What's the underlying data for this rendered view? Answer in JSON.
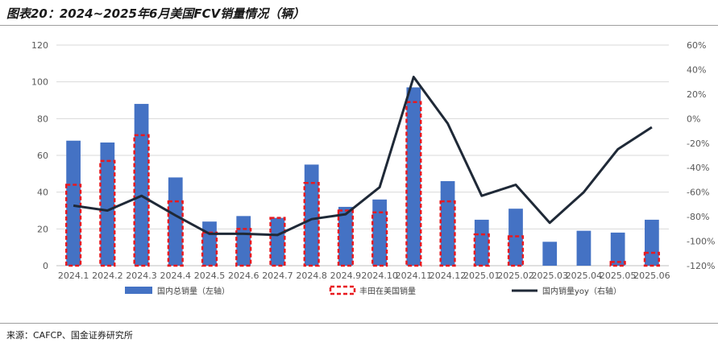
{
  "title": "图表20：2024~2025年6月美国FCV销量情况（辆）",
  "source": "来源：CAFCP、国金证券研究所",
  "colors": {
    "total_bar": "#4472C4",
    "toyota_dash": "#E8191F",
    "yoy_line": "#1F2937",
    "grid": "#D9D9D9",
    "axis_text": "#595959"
  },
  "chart_data": {
    "type": "bar",
    "categories": [
      "2024.1",
      "2024.2",
      "2024.3",
      "2024.4",
      "2024.5",
      "2024.6",
      "2024.7",
      "2024.8",
      "2024.9",
      "2024.10",
      "2024.11",
      "2024.12",
      "2025.01",
      "2025.02",
      "2025.03",
      "2025.04",
      "2025.05",
      "2025.06"
    ],
    "series": [
      {
        "name": "国内总销量（左轴）",
        "kind": "bar",
        "axis": "left",
        "values": [
          68,
          67,
          88,
          48,
          24,
          27,
          26,
          55,
          32,
          36,
          97,
          46,
          25,
          31,
          13,
          19,
          18,
          25
        ]
      },
      {
        "name": "丰田在美国销量",
        "kind": "dashed-bar",
        "axis": "left",
        "values": [
          44,
          57,
          71,
          35,
          18,
          20,
          26,
          45,
          30,
          29,
          89,
          35,
          17,
          16,
          0,
          0,
          2,
          7
        ]
      },
      {
        "name": "国内销量yoy（右轴）",
        "kind": "line",
        "axis": "right",
        "values": [
          -71,
          -75,
          -63,
          -79,
          -94,
          -94,
          -95,
          -82,
          -78,
          -56,
          34,
          -4,
          -63,
          -54,
          -85,
          -60,
          -25,
          -7
        ]
      }
    ],
    "left_axis": {
      "min": 0,
      "max": 120,
      "ticks": [
        "0",
        "20",
        "40",
        "60",
        "80",
        "100",
        "120"
      ]
    },
    "right_axis": {
      "min": -120,
      "max": 60,
      "ticks": [
        "-120%",
        "-100%",
        "-80%",
        "-60%",
        "-40%",
        "-20%",
        "0%",
        "20%",
        "40%",
        "60%"
      ]
    },
    "grid": true,
    "legend_position": "bottom"
  }
}
